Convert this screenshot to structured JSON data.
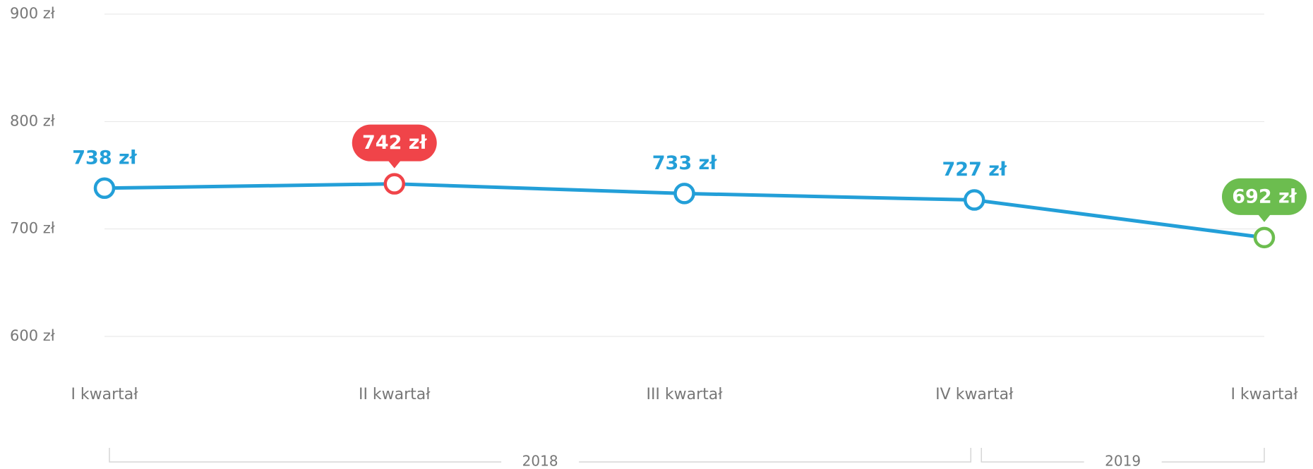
{
  "chart_data": {
    "type": "line",
    "categories": [
      "I kwartał",
      "II kwartał",
      "III kwartał",
      "IV kwartał",
      "I kwartał"
    ],
    "values": [
      738,
      742,
      733,
      727,
      692
    ],
    "value_labels": [
      "738 zł",
      "742 zł",
      "733 zł",
      "727 zł",
      "692 zł"
    ],
    "color": "#239fd8",
    "point_colors": [
      "#239fd8",
      "#f04449",
      "#239fd8",
      "#239fd8",
      "#6cbd4f"
    ],
    "ylim": [
      600,
      900
    ],
    "yticks": [
      {
        "value": 600,
        "label": "600 zł"
      },
      {
        "value": 700,
        "label": "700 zł"
      },
      {
        "value": 800,
        "label": "800 zł"
      },
      {
        "value": 900,
        "label": "900 zł"
      }
    ],
    "grid": true,
    "groups": [
      {
        "label": "2018",
        "start": 0,
        "end": 3
      },
      {
        "label": "2019",
        "start": 4,
        "end": 4
      }
    ]
  }
}
